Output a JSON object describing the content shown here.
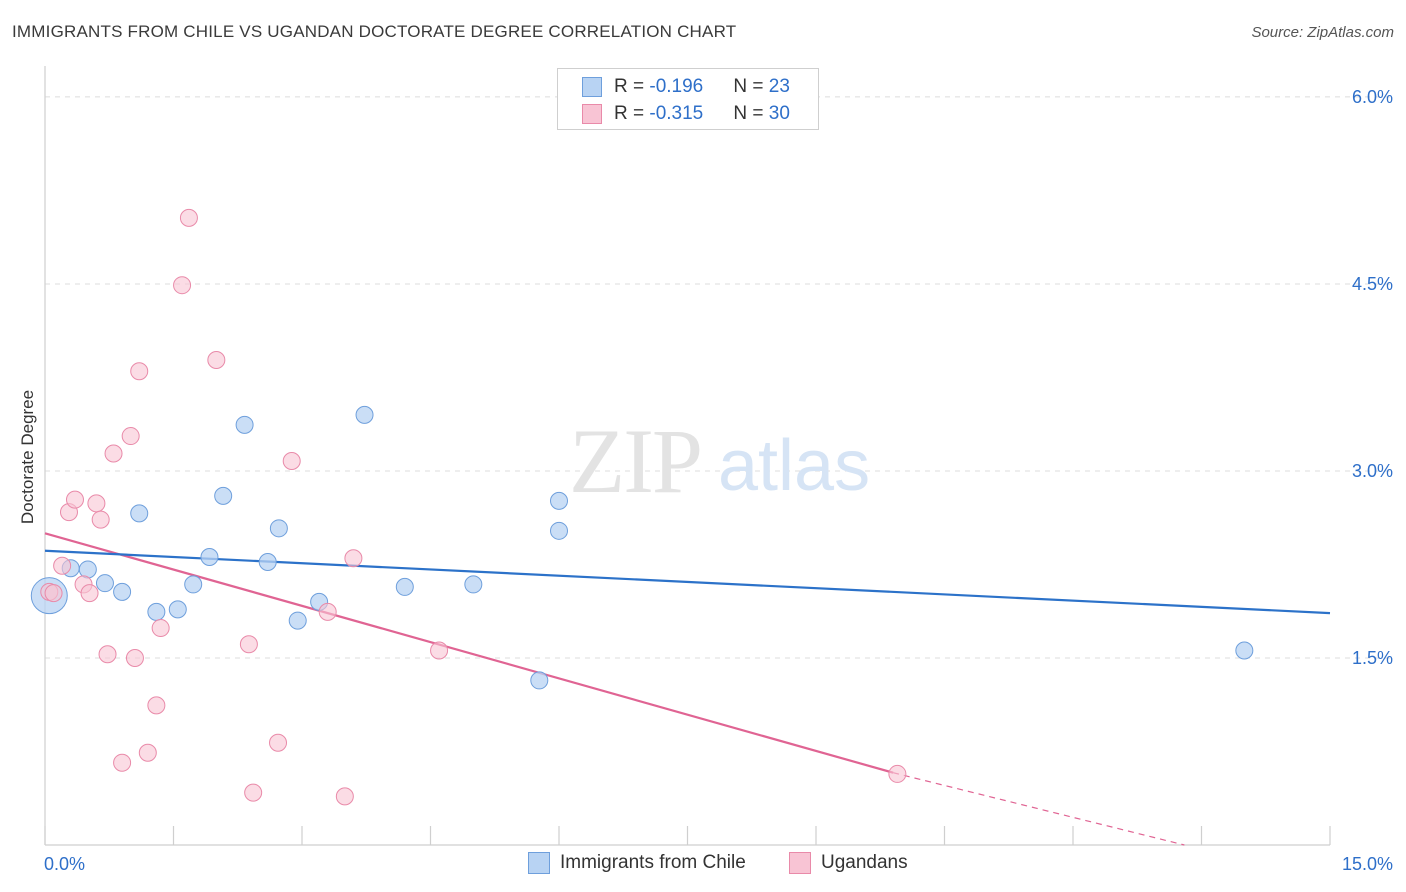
{
  "title": "IMMIGRANTS FROM CHILE VS UGANDAN DOCTORATE DEGREE CORRELATION CHART",
  "source": "Source: ZipAtlas.com",
  "watermark": {
    "zip": "ZIP",
    "atlas": "atlas"
  },
  "legend": {
    "rows": [
      {
        "r_label": "R = ",
        "r_value": "-0.196",
        "n_label": "N = ",
        "n_value": "23"
      },
      {
        "r_label": "R = ",
        "r_value": "-0.315",
        "n_label": "N = ",
        "n_value": "30"
      }
    ]
  },
  "colors": {
    "blue_fill": "#b8d3f3",
    "blue_edge": "#6e9fdc",
    "blue_line": "#2c72c9",
    "pink_fill": "#f8c4d4",
    "pink_edge": "#e98aa9",
    "pink_line": "#e06493",
    "tick_label": "#2e6fc9",
    "grid": "#dcdcdc"
  },
  "chart_data": {
    "type": "scatter",
    "title": "IMMIGRANTS FROM CHILE VS UGANDAN DOCTORATE DEGREE CORRELATION CHART",
    "xlabel": "",
    "ylabel": "Doctorate Degree",
    "xlim": [
      0,
      15
    ],
    "ylim": [
      0,
      6.2
    ],
    "x_tick_labels": [
      "0.0%",
      "15.0%"
    ],
    "y_ticks": [
      1.5,
      3.0,
      4.5,
      6.0
    ],
    "y_tick_labels": [
      "1.5%",
      "3.0%",
      "4.5%",
      "6.0%"
    ],
    "grid": true,
    "legend_position": "bottom",
    "series": [
      {
        "name": "Immigrants from Chile",
        "r": -0.196,
        "n": 23,
        "points": [
          [
            0.05,
            2.0
          ],
          [
            0.3,
            2.22
          ],
          [
            0.5,
            2.21
          ],
          [
            0.7,
            2.1
          ],
          [
            0.9,
            2.03
          ],
          [
            1.1,
            2.66
          ],
          [
            1.3,
            1.87
          ],
          [
            1.55,
            1.89
          ],
          [
            1.73,
            2.09
          ],
          [
            1.92,
            2.31
          ],
          [
            2.08,
            2.8
          ],
          [
            2.33,
            3.37
          ],
          [
            2.6,
            2.27
          ],
          [
            2.73,
            2.54
          ],
          [
            2.95,
            1.8
          ],
          [
            3.2,
            1.95
          ],
          [
            3.73,
            3.45
          ],
          [
            4.2,
            2.07
          ],
          [
            5.0,
            2.09
          ],
          [
            5.77,
            1.32
          ],
          [
            6.0,
            2.52
          ],
          [
            6.0,
            2.76
          ],
          [
            14.0,
            1.56
          ]
        ],
        "trend": {
          "x": [
            0,
            15
          ],
          "y": [
            2.36,
            1.86
          ]
        }
      },
      {
        "name": "Ugandans",
        "r": -0.315,
        "n": 30,
        "points": [
          [
            0.05,
            2.03
          ],
          [
            0.1,
            2.02
          ],
          [
            0.2,
            2.24
          ],
          [
            0.28,
            2.67
          ],
          [
            0.35,
            2.77
          ],
          [
            0.45,
            2.09
          ],
          [
            0.52,
            2.02
          ],
          [
            0.6,
            2.74
          ],
          [
            0.65,
            2.61
          ],
          [
            0.73,
            1.53
          ],
          [
            0.8,
            3.14
          ],
          [
            0.9,
            0.66
          ],
          [
            1.0,
            3.28
          ],
          [
            1.05,
            1.5
          ],
          [
            1.1,
            3.8
          ],
          [
            1.2,
            0.74
          ],
          [
            1.3,
            1.12
          ],
          [
            1.35,
            1.74
          ],
          [
            1.6,
            4.49
          ],
          [
            1.68,
            5.03
          ],
          [
            2.0,
            3.89
          ],
          [
            2.38,
            1.61
          ],
          [
            2.43,
            0.42
          ],
          [
            2.72,
            0.82
          ],
          [
            2.88,
            3.08
          ],
          [
            3.3,
            1.87
          ],
          [
            3.5,
            0.39
          ],
          [
            3.6,
            2.3
          ],
          [
            4.6,
            1.56
          ],
          [
            9.95,
            0.57
          ]
        ],
        "trend": {
          "x": [
            0,
            9.9
          ],
          "y": [
            2.5,
            0.58
          ]
        },
        "trend_extension": {
          "x": [
            9.9,
            13.3
          ],
          "y": [
            0.58,
            0.0
          ]
        }
      }
    ]
  },
  "bottom_legend": [
    {
      "label": "Immigrants from Chile"
    },
    {
      "label": "Ugandans"
    }
  ]
}
